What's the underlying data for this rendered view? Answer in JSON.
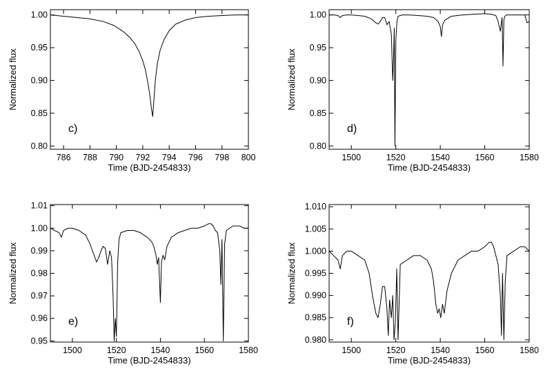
{
  "chart_data": [
    {
      "type": "line",
      "panel_label": "c)",
      "xlabel": "Time (BJD-2454833)",
      "ylabel": "Normalized flux",
      "xlim": [
        785,
        800
      ],
      "ylim": [
        0.795,
        1.008
      ],
      "xticks": [
        786,
        788,
        790,
        792,
        794,
        796,
        798,
        800
      ],
      "yticks": [
        0.8,
        0.85,
        0.9,
        0.95,
        1.0
      ],
      "ytick_decimals": 2,
      "series": [
        {
          "x": [
            785.0,
            786.0,
            787.0,
            788.0,
            789.0,
            789.8,
            790.5,
            791.0,
            791.4,
            791.7,
            792.0,
            792.2,
            792.4,
            792.55,
            792.65,
            792.75,
            792.85,
            792.95,
            793.1,
            793.3,
            793.6,
            794.0,
            794.5,
            795.2,
            796.0,
            797.0,
            798.0,
            799.0,
            800.0
          ],
          "y": [
            1.0,
            0.998,
            0.996,
            0.994,
            0.99,
            0.984,
            0.975,
            0.966,
            0.956,
            0.945,
            0.93,
            0.916,
            0.895,
            0.875,
            0.858,
            0.845,
            0.872,
            0.9,
            0.925,
            0.945,
            0.962,
            0.976,
            0.986,
            0.992,
            0.996,
            0.998,
            0.999,
            1.0,
            1.0
          ]
        }
      ]
    },
    {
      "type": "line",
      "panel_label": "d)",
      "xlabel": "Time (BJD-2454833)",
      "ylabel": "Normalized flux",
      "xlim": [
        1490,
        1580
      ],
      "ylim": [
        0.795,
        1.008
      ],
      "xticks": [
        1500,
        1520,
        1540,
        1560,
        1580
      ],
      "yticks": [
        0.8,
        0.85,
        0.9,
        0.95,
        1.0
      ],
      "ytick_decimals": 2,
      "series": [
        {
          "x": [
            1490,
            1492,
            1494,
            1495,
            1496,
            1498,
            1500,
            1503,
            1506,
            1509,
            1511,
            1512,
            1513,
            1514,
            1515,
            1516,
            1517,
            1518,
            1518.6,
            1519.0,
            1519.3,
            1519.6,
            1520.0,
            1520.5,
            1521,
            1523,
            1526,
            1530,
            1534,
            1537,
            1539,
            1540,
            1540.5,
            1541,
            1542,
            1545,
            1550,
            1555,
            1560,
            1563,
            1565,
            1566,
            1567,
            1567.8,
            1568.2,
            1568.6,
            1569,
            1570,
            1573,
            1576,
            1578,
            1579,
            1580
          ],
          "y": [
            1.0,
            1.0,
            0.999,
            0.996,
            0.999,
            1.0,
            1.0,
            0.999,
            0.998,
            0.994,
            0.988,
            0.986,
            0.99,
            0.996,
            0.996,
            0.985,
            0.99,
            0.97,
            0.9,
            0.935,
            0.98,
            0.8,
            0.96,
            0.99,
            0.998,
            1.0,
            1.0,
            0.999,
            0.998,
            0.996,
            0.99,
            0.982,
            0.967,
            0.985,
            0.992,
            0.998,
            1.0,
            1.001,
            1.002,
            1.001,
            0.999,
            0.99,
            0.975,
            0.996,
            0.922,
            0.992,
            0.998,
            1.0,
            1.0,
            1.0,
            1.0,
            0.988,
            0.99
          ]
        }
      ]
    },
    {
      "type": "line",
      "panel_label": "e)",
      "xlabel": "Time (BJD-2454833)",
      "ylabel": "Normalized flux",
      "xlim": [
        1490,
        1580
      ],
      "ylim": [
        0.9495,
        1.0105
      ],
      "xticks": [
        1500,
        1520,
        1540,
        1560,
        1580
      ],
      "yticks": [
        0.95,
        0.96,
        0.97,
        0.98,
        0.99,
        1.0,
        1.01
      ],
      "ytick_decimals": 2,
      "series": [
        {
          "x": [
            1490,
            1492,
            1494,
            1495,
            1496,
            1498,
            1500,
            1503,
            1506,
            1508,
            1509.5,
            1511,
            1512,
            1513,
            1514,
            1515,
            1516,
            1517,
            1517.8,
            1518.5,
            1519.0,
            1519.5,
            1520.0,
            1520.6,
            1521.2,
            1522,
            1525,
            1528,
            1531,
            1534,
            1536,
            1537,
            1538,
            1538.6,
            1539.2,
            1540.0,
            1540.5,
            1541.2,
            1542,
            1543,
            1545,
            1548,
            1551,
            1554,
            1557,
            1560,
            1562,
            1563,
            1564,
            1565,
            1566,
            1567.0,
            1567.5,
            1568.0,
            1568.6,
            1569.2,
            1570,
            1573,
            1576,
            1578,
            1580
          ],
          "y": [
            1.0,
            0.999,
            0.998,
            0.996,
            0.999,
            1.0,
            1.0,
            0.999,
            0.997,
            0.993,
            0.989,
            0.985,
            0.987,
            0.99,
            0.992,
            0.991,
            0.984,
            0.99,
            0.987,
            0.97,
            0.95,
            0.96,
            0.952,
            0.985,
            0.995,
            0.998,
            0.999,
            0.999,
            0.998,
            0.996,
            0.994,
            0.992,
            0.988,
            0.984,
            0.987,
            0.967,
            0.985,
            0.988,
            0.986,
            0.992,
            0.996,
            0.998,
            0.999,
            1.0,
            1.0,
            1.001,
            1.002,
            1.002,
            1.001,
            0.999,
            0.998,
            0.99,
            0.975,
            0.995,
            0.95,
            0.993,
            0.999,
            1.001,
            1.001,
            1.0,
            1.0
          ]
        }
      ]
    },
    {
      "type": "line",
      "panel_label": "f)",
      "xlabel": "Time (BJD-2454833)",
      "ylabel": "Normalized flux",
      "xlim": [
        1490,
        1580
      ],
      "ylim": [
        0.9795,
        1.0105
      ],
      "xticks": [
        1500,
        1520,
        1540,
        1560,
        1580
      ],
      "yticks": [
        0.98,
        0.985,
        0.99,
        0.995,
        1.0,
        1.005,
        1.01
      ],
      "ytick_decimals": 3,
      "series": [
        {
          "x": [
            1490,
            1492,
            1494,
            1495,
            1496,
            1498,
            1500,
            1503,
            1506,
            1508,
            1509.5,
            1511,
            1512,
            1513,
            1514,
            1515,
            1516,
            1516.6,
            1517.2,
            1518,
            1518.6,
            1519.2,
            1519.8,
            1520.4,
            1521.0,
            1522,
            1525,
            1528,
            1531,
            1534,
            1536,
            1537,
            1538,
            1538.8,
            1539.5,
            1540.2,
            1541,
            1541.8,
            1543,
            1545,
            1548,
            1551,
            1554,
            1557,
            1560,
            1562,
            1563,
            1564,
            1565,
            1566,
            1567.0,
            1567.5,
            1568.0,
            1568.6,
            1569.2,
            1570,
            1573,
            1576,
            1578,
            1580
          ],
          "y": [
            1.0,
            0.999,
            0.998,
            0.996,
            0.999,
            1.0,
            1.0,
            0.999,
            0.998,
            0.995,
            0.99,
            0.986,
            0.985,
            0.988,
            0.992,
            0.992,
            0.987,
            0.981,
            0.989,
            0.985,
            0.99,
            0.98,
            0.984,
            0.996,
            0.98,
            0.997,
            0.998,
            0.999,
            0.999,
            0.998,
            0.996,
            0.993,
            0.988,
            0.986,
            0.987,
            0.985,
            0.988,
            0.986,
            0.991,
            0.995,
            0.998,
            0.999,
            1.0,
            1.0,
            1.001,
            1.002,
            1.002,
            1.001,
            0.999,
            0.997,
            0.99,
            0.981,
            0.995,
            0.98,
            0.993,
            0.999,
            1.0,
            1.001,
            1.001,
            1.0
          ]
        }
      ]
    }
  ]
}
